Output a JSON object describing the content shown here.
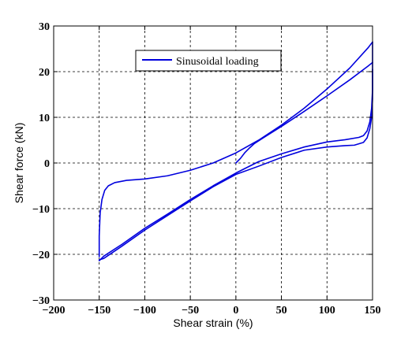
{
  "chart_data": {
    "type": "line",
    "xlabel": "Shear strain (%)",
    "ylabel": "Shear force (kN)",
    "xlim": [
      -200,
      150
    ],
    "ylim": [
      -30,
      30
    ],
    "xticks": [
      -200,
      -150,
      -100,
      -50,
      0,
      50,
      100,
      150
    ],
    "yticks": [
      -30,
      -20,
      -10,
      0,
      10,
      20,
      30
    ],
    "x_tick_labels": [
      "−200",
      "−150",
      "−100",
      "−50",
      "0",
      "50",
      "100",
      "150"
    ],
    "y_tick_labels": [
      "−30",
      "−20",
      "−10",
      "0",
      "10",
      "20",
      "30"
    ],
    "grid": true,
    "grid_style": "dashed",
    "legend": {
      "position": "top-center",
      "entries": [
        "Sinusoidal loading"
      ]
    },
    "line_color": "#0000dd",
    "series": [
      {
        "name": "Sinusoidal loading",
        "segments": [
          {
            "points": [
              [
                0,
                0
              ],
              [
                5,
                1
              ],
              [
                10,
                2.3
              ],
              [
                15,
                3.3
              ],
              [
                20,
                4.2
              ],
              [
                30,
                5.5
              ],
              [
                50,
                8.0
              ],
              [
                75,
                11.3
              ],
              [
                100,
                14.7
              ],
              [
                125,
                18.2
              ],
              [
                145,
                21.2
              ],
              [
                150,
                22
              ]
            ]
          },
          {
            "points": [
              [
                150,
                26.5
              ],
              [
                150,
                16
              ],
              [
                149,
                12
              ],
              [
                147,
                9
              ],
              [
                144,
                7
              ],
              [
                140,
                6
              ],
              [
                135,
                5.6
              ],
              [
                120,
                5.1
              ],
              [
                100,
                4.6
              ],
              [
                75,
                3.5
              ],
              [
                50,
                2.0
              ],
              [
                25,
                0.3
              ],
              [
                0,
                -2.2
              ],
              [
                -25,
                -5.0
              ],
              [
                -50,
                -8.0
              ],
              [
                -75,
                -11.2
              ],
              [
                -100,
                -14.3
              ],
              [
                -125,
                -17.8
              ],
              [
                -145,
                -20.4
              ],
              [
                -150,
                -21.4
              ]
            ]
          },
          {
            "points": [
              [
                -150,
                -20.5
              ],
              [
                -150,
                -16
              ],
              [
                -149,
                -11
              ],
              [
                -147,
                -8
              ],
              [
                -144,
                -6
              ],
              [
                -140,
                -5
              ],
              [
                -133,
                -4.3
              ],
              [
                -120,
                -3.8
              ],
              [
                -100,
                -3.5
              ],
              [
                -75,
                -2.8
              ],
              [
                -50,
                -1.6
              ],
              [
                -25,
                0
              ],
              [
                0,
                2.2
              ],
              [
                25,
                5.0
              ],
              [
                50,
                8.3
              ],
              [
                75,
                12.0
              ],
              [
                100,
                16.2
              ],
              [
                125,
                20.8
              ],
              [
                145,
                25.2
              ],
              [
                150,
                26.5
              ]
            ]
          },
          {
            "points": [
              [
                150,
                20.5
              ],
              [
                150,
                14
              ],
              [
                149,
                10
              ],
              [
                147,
                7.5
              ],
              [
                144,
                5.5
              ],
              [
                140,
                4.5
              ],
              [
                130,
                3.9
              ],
              [
                120,
                3.8
              ],
              [
                100,
                3.5
              ],
              [
                75,
                2.8
              ],
              [
                50,
                1.2
              ],
              [
                25,
                -0.7
              ],
              [
                0,
                -2.5
              ],
              [
                -25,
                -5.2
              ],
              [
                -50,
                -8.3
              ],
              [
                -75,
                -11.5
              ],
              [
                -100,
                -14.7
              ],
              [
                -125,
                -18.2
              ],
              [
                -145,
                -20.9
              ],
              [
                -150,
                -21.2
              ]
            ]
          }
        ]
      }
    ]
  }
}
